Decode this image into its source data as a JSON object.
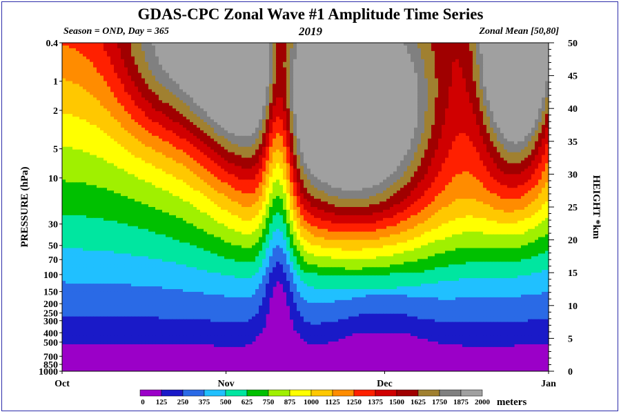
{
  "chart_data": {
    "type": "heatmap",
    "title": "GDAS-CPC Zonal Wave #1 Amplitude Time Series",
    "subtitle_left": "Season = OND, Day = 365",
    "subtitle_center": "2019",
    "subtitle_right": "Zonal Mean [50,80]",
    "ylabel_left": "PRESSURE (hPa)",
    "ylabel_right": "HEIGHT *km",
    "x_ticks": [
      "Oct",
      "Nov",
      "Dec",
      "Jan"
    ],
    "pressure_ticks": [
      "0.4",
      "1",
      "2",
      "5",
      "10",
      "30",
      "50",
      "70",
      "100",
      "150",
      "200",
      "250",
      "300",
      "400",
      "500",
      "700",
      "850",
      "1000"
    ],
    "height_ticks": [
      "0",
      "5",
      "10",
      "15",
      "20",
      "25",
      "30",
      "35",
      "40",
      "45",
      "50"
    ],
    "colorbar": {
      "unit": "meters",
      "levels": [
        "0",
        "125",
        "250",
        "375",
        "500",
        "625",
        "750",
        "875",
        "1000",
        "1125",
        "1250",
        "1375",
        "1500",
        "1625",
        "1750",
        "1875",
        "2000"
      ],
      "colors": [
        "#9b00c8",
        "#1a1ac8",
        "#2a6ae6",
        "#20c0ff",
        "#00e6a0",
        "#00c000",
        "#a0f000",
        "#ffff00",
        "#ffc800",
        "#ff8c00",
        "#ff2000",
        "#d00000",
        "#a00000",
        "#a08030",
        "#808080",
        "#a0a0a0"
      ]
    },
    "grid": false,
    "series": [
      {
        "name": "Amplitude",
        "x_day": [
          0,
          10,
          20,
          30,
          40,
          50,
          60,
          70,
          75,
          80,
          90,
          100,
          110,
          120,
          130,
          140,
          150,
          160,
          170,
          180,
          190,
          200,
          210,
          220,
          230,
          240,
          250,
          260,
          270,
          280,
          290,
          300,
          310,
          320,
          330,
          340,
          350,
          365
        ]
      }
    ]
  }
}
